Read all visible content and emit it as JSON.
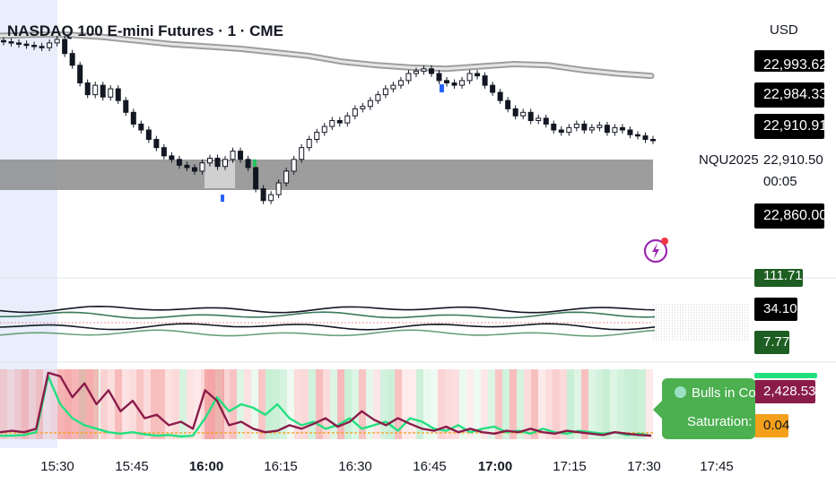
{
  "header": {
    "title": "NASDAQ 100 E-mini Futures · 1 · CME",
    "currency": "USD"
  },
  "price_scale": {
    "labels": [
      "22,993.62",
      "22,984.33",
      "22,910.91",
      "22,860.00"
    ],
    "symbol": "NQU2025",
    "last_price": "22,910.50",
    "countdown": "00:05"
  },
  "indicator_labels": {
    "osc_top": "111.71",
    "osc_mid": "34.10",
    "osc_low": "7.77",
    "pressure": "2,428.53",
    "saturation_value": "0.04"
  },
  "tooltip": {
    "line1": "Bulls in Co",
    "line2": "Saturation:"
  },
  "colors": {
    "bull_green": "#22e07f",
    "bear_maroon": "#8a1c4a",
    "tooltip_green": "#4caf50",
    "saturation_orange": "#f5a01a",
    "gray_band": "#888888"
  },
  "chart_data": {
    "type": "candlestick",
    "x_ticks": [
      "15:30",
      "15:45",
      "16:00",
      "16:15",
      "16:30",
      "16:45",
      "17:00",
      "17:15",
      "17:30",
      "17:45"
    ],
    "x_ticks_bold": [
      "16:00",
      "17:00"
    ],
    "ylim": [
      22840,
      23000
    ],
    "close_series": [
      22995,
      22994,
      22993,
      22992,
      22991,
      22990,
      22994,
      22997,
      22985,
      22975,
      22960,
      22950,
      22958,
      22948,
      22955,
      22945,
      22935,
      22925,
      22920,
      22912,
      22905,
      22898,
      22895,
      22890,
      22888,
      22885,
      22892,
      22896,
      22889,
      22895,
      22902,
      22895,
      22888,
      22870,
      22860,
      22865,
      22875,
      22885,
      22895,
      22905,
      22912,
      22918,
      22923,
      22928,
      22926,
      22932,
      22938,
      22940,
      22945,
      22950,
      22955,
      22958,
      22962,
      22968,
      22970,
      22972,
      22968,
      22962,
      22960,
      22958,
      22962,
      22968,
      22966,
      22958,
      22952,
      22945,
      22938,
      22932,
      22935,
      22928,
      22930,
      22925,
      22920,
      22918,
      22922,
      22925,
      22920,
      22922,
      22924,
      22918,
      22922,
      22920,
      22916,
      22915,
      22912,
      22911
    ],
    "moving_average": [
      23000,
      23001,
      23001,
      22999,
      22996,
      22993,
      22991,
      22989,
      22986,
      22983,
      22978,
      22975,
      22973,
      22972,
      22974,
      22976,
      22975,
      22971,
      22968,
      22966
    ],
    "band": [
      22897,
      22880
    ],
    "osc_lines": [
      0.5,
      0.62,
      0.74
    ],
    "bull_series": [
      0.05,
      0.05,
      0.06,
      0.1,
      0.9,
      0.5,
      0.3,
      0.2,
      0.15,
      0.1,
      0.08,
      0.1,
      0.07,
      0.05,
      0.06,
      0.04,
      0.05,
      0.3,
      0.6,
      0.4,
      0.5,
      0.45,
      0.35,
      0.5,
      0.3,
      0.2,
      0.25,
      0.15,
      0.2,
      0.3,
      0.15,
      0.2,
      0.25,
      0.12,
      0.3,
      0.25,
      0.15,
      0.12,
      0.2,
      0.1,
      0.15,
      0.18,
      0.1,
      0.12,
      0.08,
      0.15,
      0.1,
      0.08,
      0.12,
      0.1,
      0.08,
      0.1,
      0.06,
      0.08,
      0.05
    ],
    "bear_series": [
      0.1,
      0.12,
      0.1,
      0.15,
      0.95,
      0.9,
      0.6,
      0.8,
      0.5,
      0.7,
      0.4,
      0.55,
      0.3,
      0.35,
      0.2,
      0.25,
      0.15,
      0.7,
      0.55,
      0.2,
      0.25,
      0.15,
      0.1,
      0.12,
      0.2,
      0.15,
      0.22,
      0.3,
      0.18,
      0.25,
      0.4,
      0.28,
      0.2,
      0.3,
      0.22,
      0.15,
      0.12,
      0.18,
      0.1,
      0.15,
      0.1,
      0.08,
      0.12,
      0.1,
      0.15,
      0.1,
      0.08,
      0.12,
      0.1,
      0.08,
      0.06,
      0.1,
      0.08,
      0.06,
      0.05
    ],
    "saturation_level": 0.04
  }
}
